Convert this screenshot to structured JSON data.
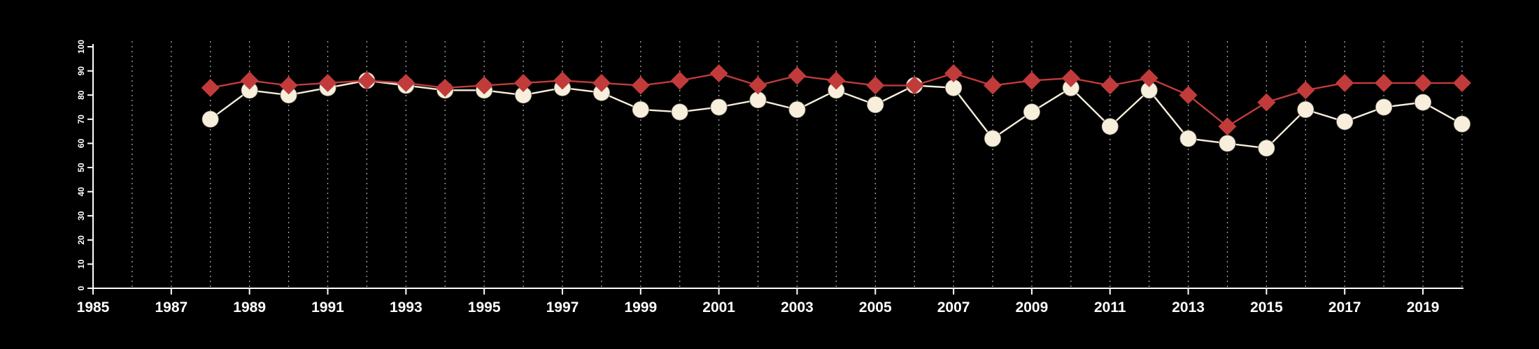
{
  "chart_data": {
    "type": "line",
    "title": "",
    "xlabel": "",
    "ylabel": "",
    "xlim": [
      1985,
      2020
    ],
    "ylim": [
      0,
      100
    ],
    "grid": "vertical-dashed",
    "grid_years": [
      1986,
      2020
    ],
    "legend_position": "none",
    "x_tick_labels": [
      "1985",
      "1987",
      "1989",
      "1991",
      "1993",
      "1995",
      "1997",
      "1999",
      "2001",
      "2003",
      "2005",
      "2007",
      "2009",
      "2011",
      "2013",
      "2015",
      "2017",
      "2019"
    ],
    "y_ticks": [
      0,
      10,
      20,
      30,
      40,
      50,
      60,
      70,
      80,
      90,
      100
    ],
    "x": [
      1988,
      1989,
      1990,
      1991,
      1992,
      1993,
      1994,
      1995,
      1996,
      1997,
      1998,
      1999,
      2000,
      2001,
      2002,
      2003,
      2004,
      2005,
      2006,
      2007,
      2008,
      2009,
      2010,
      2011,
      2012,
      2013,
      2014,
      2015,
      2016,
      2017,
      2018,
      2019,
      2020
    ],
    "series": [
      {
        "name": "cream-circle-series",
        "marker": "circle",
        "color": "#f7efdc",
        "values": [
          70,
          82,
          80,
          83,
          86,
          84,
          82,
          82,
          80,
          83,
          81,
          74,
          73,
          75,
          78,
          74,
          82,
          76,
          84,
          83,
          62,
          73,
          83,
          67,
          82,
          62,
          60,
          58,
          74,
          69,
          75,
          77,
          68
        ]
      },
      {
        "name": "red-diamond-series",
        "marker": "diamond",
        "color": "#c23b3b",
        "values": [
          83,
          86,
          84,
          85,
          86,
          85,
          83,
          84,
          85,
          86,
          85,
          84,
          86,
          89,
          84,
          88,
          86,
          84,
          84,
          89,
          84,
          86,
          87,
          84,
          87,
          80,
          67,
          77,
          82,
          85,
          85,
          85,
          85
        ]
      }
    ],
    "colors": {
      "background": "#000000",
      "axis": "#ffffff",
      "grid": "#a8a8a8",
      "tick_label": "#ffffff"
    }
  }
}
